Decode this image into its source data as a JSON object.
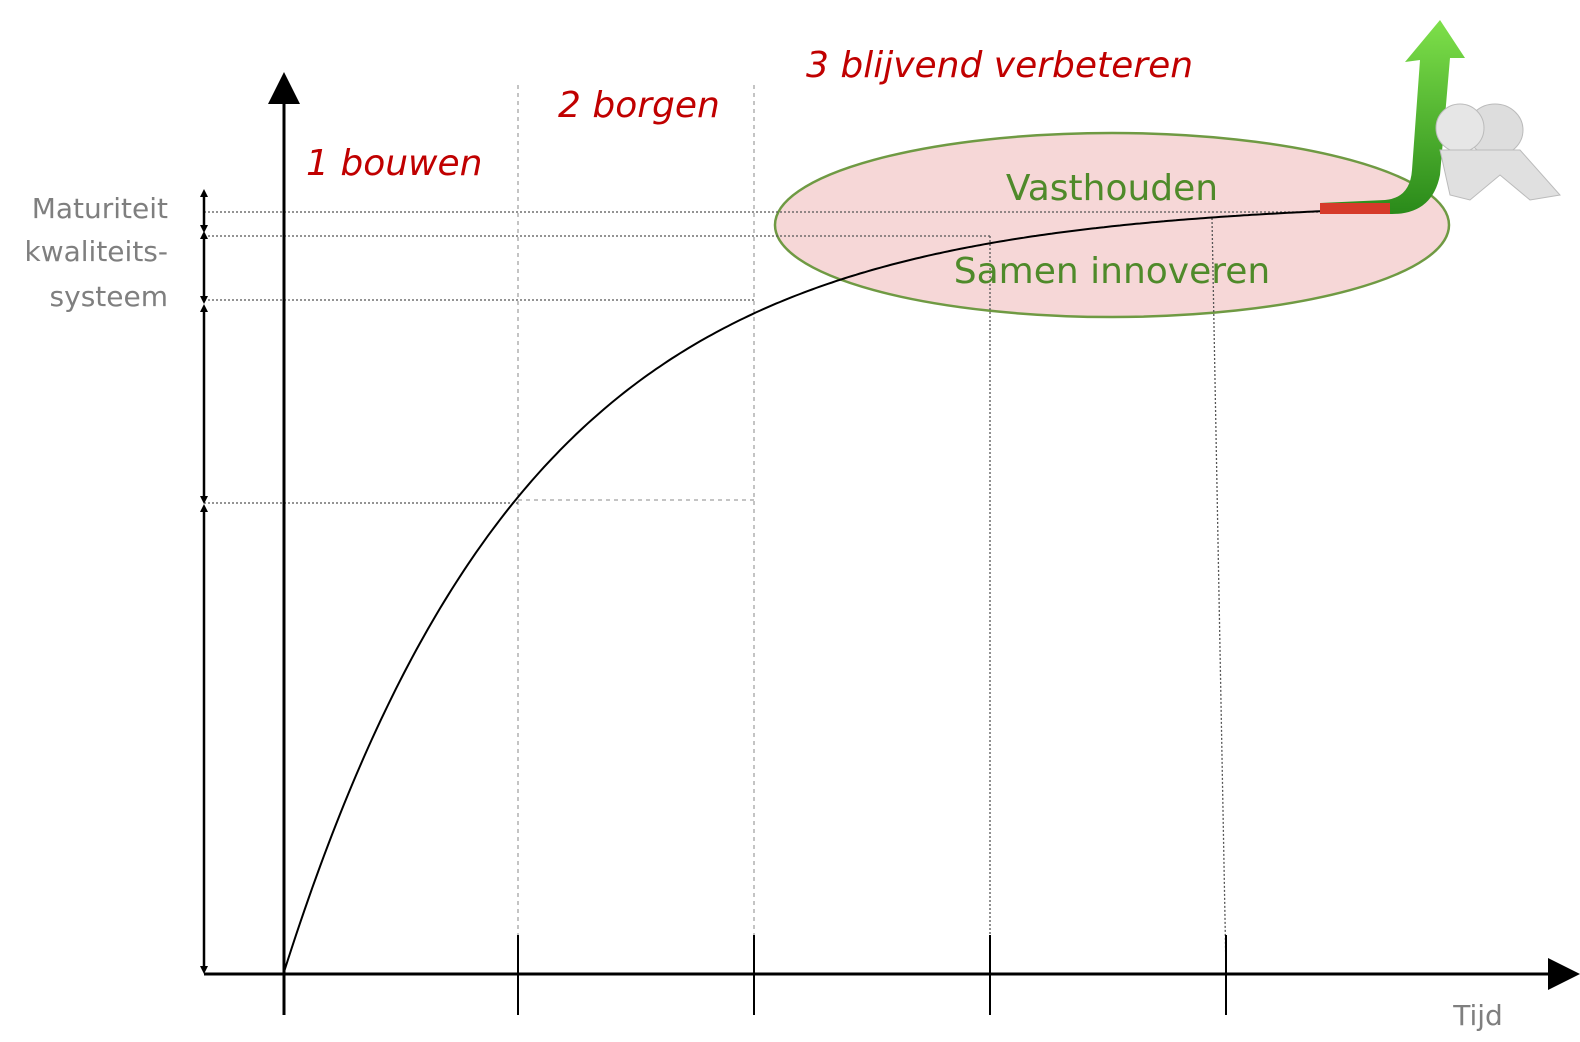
{
  "phases": [
    "1 bouwen",
    "2 borgen",
    "3 blijvend verbeteren"
  ],
  "y_axis_label": [
    "Maturiteit",
    "kwaliteits-",
    "systeem"
  ],
  "ellipse": {
    "top": "Vasthouden",
    "bottom": "Samen innoveren"
  },
  "x_axis_label": "Tijd"
}
